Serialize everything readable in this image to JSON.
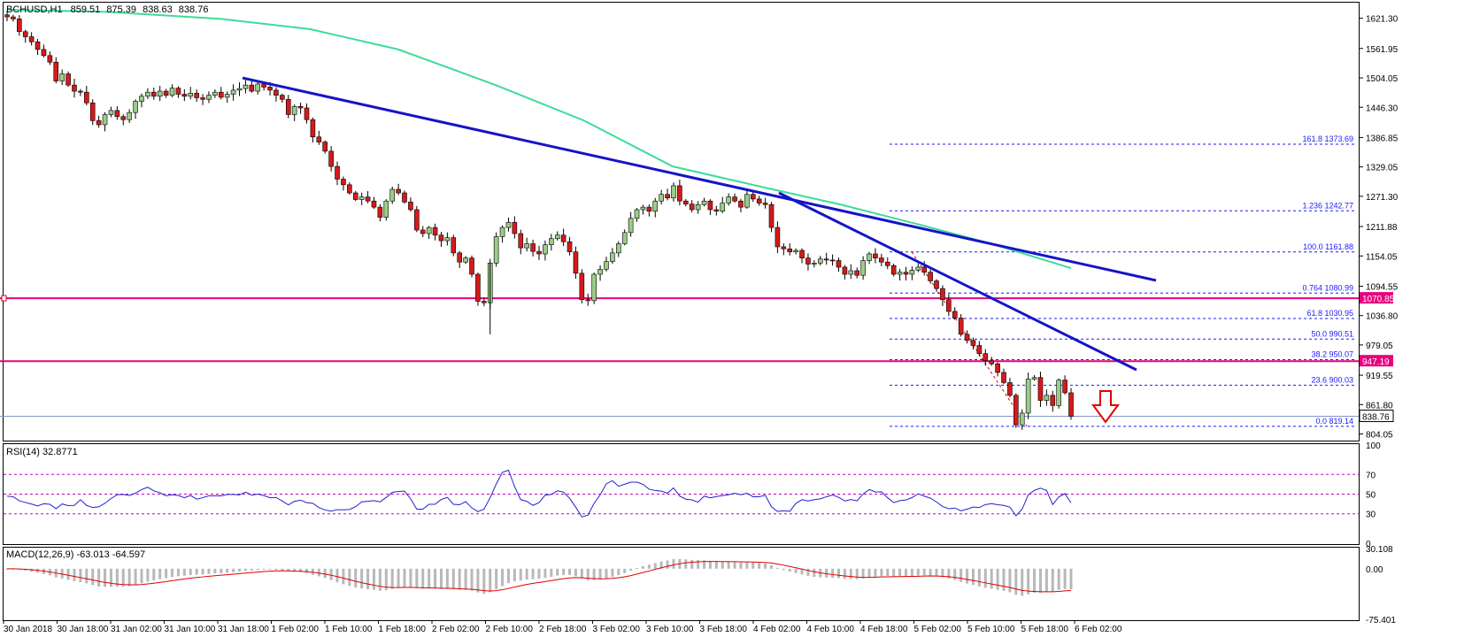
{
  "chart_data": {
    "type": "candlestick",
    "symbol_header": {
      "symbol": "BCHUSD,H1",
      "open": "859.51",
      "high": "875.39",
      "low": "838.63",
      "close": "838.76"
    },
    "price_axis": {
      "ticks": [
        "1621.30",
        "1561.95",
        "1504.05",
        "1446.30",
        "1386.85",
        "1329.05",
        "1271.30",
        "1211.88",
        "1154.05",
        "1094.55",
        "1036.80",
        "979.05",
        "919.55",
        "861.80",
        "804.05"
      ],
      "min": 791,
      "max": 1652
    },
    "current_price_label": "838.76",
    "horizontal_levels": [
      {
        "value": 1070.85,
        "label": "1070.85",
        "color": "#e6007e"
      },
      {
        "value": 947.19,
        "label": "947.19",
        "color": "#e6007e"
      }
    ],
    "fibonacci": [
      {
        "ratio": "161.8",
        "value": 1373.69,
        "label": "161.8  1373.69"
      },
      {
        "ratio": "1.236",
        "value": 1242.77,
        "label": "1.236  1242.77"
      },
      {
        "ratio": "100.0",
        "value": 1161.88,
        "label": "100.0  1161.88"
      },
      {
        "ratio": "0.764",
        "value": 1080.99,
        "label": "0.764  1080.99"
      },
      {
        "ratio": "61.8",
        "value": 1030.95,
        "label": "61.8  1030.95"
      },
      {
        "ratio": "50.0",
        "value": 990.51,
        "label": "50.0  990.51"
      },
      {
        "ratio": "38.2",
        "value": 950.07,
        "label": "38.2  950.07"
      },
      {
        "ratio": "23.6",
        "value": 900.03,
        "label": "23.6  900.03"
      },
      {
        "ratio": "0.0",
        "value": 819.14,
        "label": "0.0  819.14"
      }
    ],
    "x_axis_labels": [
      "30 Jan 2018",
      "30 Jan 18:00",
      "31 Jan 02:00",
      "31 Jan 10:00",
      "31 Jan 18:00",
      "1 Feb 02:00",
      "1 Feb 10:00",
      "1 Feb 18:00",
      "2 Feb 02:00",
      "2 Feb 10:00",
      "2 Feb 18:00",
      "3 Feb 02:00",
      "3 Feb 10:00",
      "3 Feb 18:00",
      "4 Feb 02:00",
      "4 Feb 10:00",
      "4 Feb 18:00",
      "5 Feb 02:00",
      "5 Feb 10:00",
      "5 Feb 18:00",
      "6 Feb 02:00"
    ],
    "close_series": [
      1624,
      1620,
      1595,
      1585,
      1575,
      1560,
      1548,
      1535,
      1498,
      1512,
      1490,
      1478,
      1476,
      1455,
      1420,
      1412,
      1432,
      1440,
      1428,
      1422,
      1436,
      1458,
      1468,
      1476,
      1468,
      1478,
      1470,
      1484,
      1472,
      1468,
      1474,
      1465,
      1462,
      1470,
      1476,
      1466,
      1472,
      1480,
      1483,
      1490,
      1478,
      1492,
      1486,
      1480,
      1470,
      1462,
      1432,
      1448,
      1445,
      1422,
      1388,
      1378,
      1360,
      1330,
      1305,
      1294,
      1278,
      1265,
      1270,
      1262,
      1250,
      1230,
      1262,
      1285,
      1278,
      1260,
      1245,
      1205,
      1198,
      1210,
      1195,
      1184,
      1190,
      1160,
      1142,
      1150,
      1118,
      1065,
      1062,
      1140,
      1192,
      1210,
      1220,
      1198,
      1170,
      1178,
      1163,
      1158,
      1176,
      1188,
      1195,
      1182,
      1162,
      1120,
      1068,
      1066,
      1118,
      1128,
      1143,
      1160,
      1178,
      1200,
      1228,
      1245,
      1250,
      1242,
      1262,
      1275,
      1268,
      1292,
      1262,
      1256,
      1245,
      1255,
      1262,
      1245,
      1242,
      1258,
      1270,
      1262,
      1250,
      1275,
      1266,
      1258,
      1255,
      1210,
      1172,
      1168,
      1162,
      1165,
      1150,
      1138,
      1140,
      1148,
      1146,
      1145,
      1132,
      1118,
      1125,
      1116,
      1145,
      1158,
      1150,
      1142,
      1135,
      1118,
      1122,
      1118,
      1126,
      1132,
      1122,
      1105,
      1090,
      1068,
      1045,
      1032,
      1000,
      988,
      978,
      962,
      948,
      942,
      925,
      905,
      880,
      822,
      845,
      912,
      915,
      870,
      880,
      860,
      910,
      885,
      838.76
    ],
    "rsi": {
      "label": "RSI(14) 32.8771",
      "levels": [
        "70",
        "50",
        "30",
        "0"
      ],
      "ticks": [
        "100",
        "70",
        "50",
        "30",
        "0"
      ]
    },
    "macd": {
      "label": "MACD(12,26,9) -63.013 -64.597",
      "ticks": [
        "30.108",
        "0.00",
        "-75.401"
      ],
      "min": -75.401,
      "max": 30.108
    }
  }
}
